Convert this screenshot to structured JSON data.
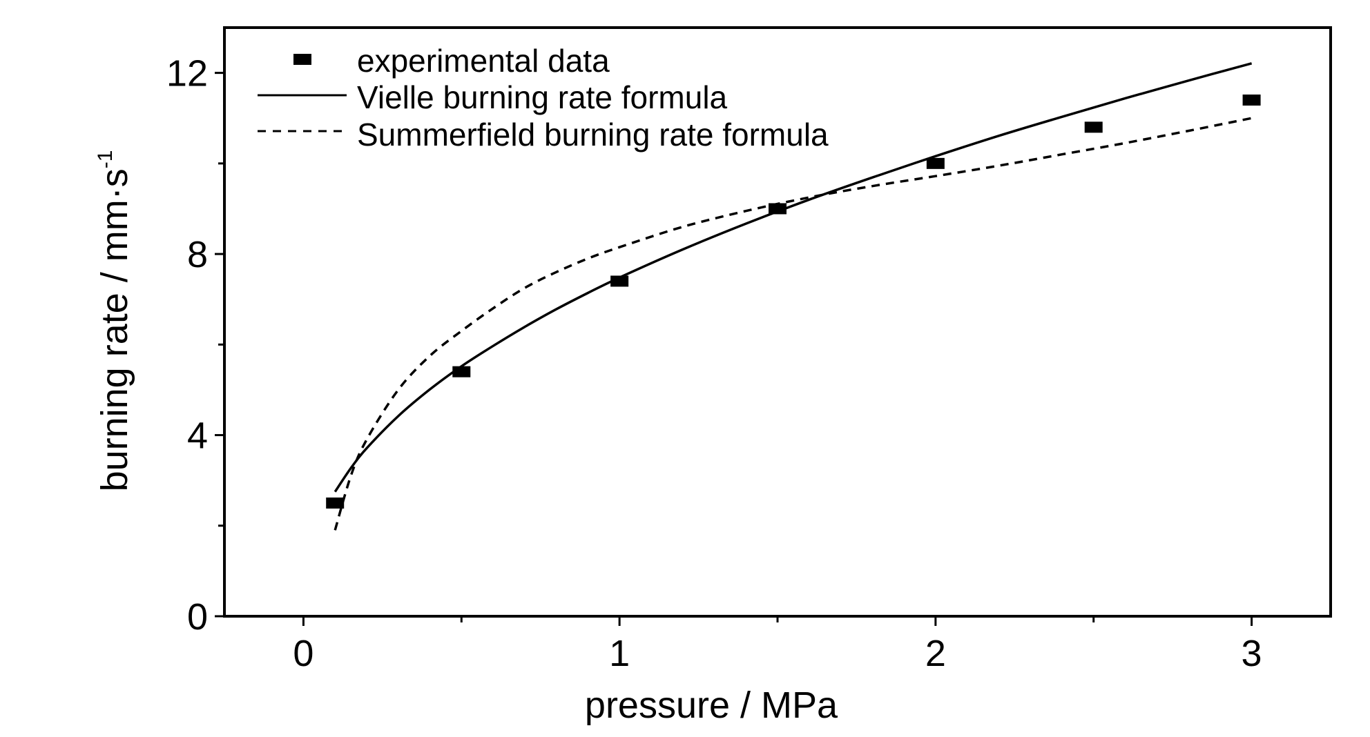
{
  "chart_data": {
    "type": "line",
    "title": "",
    "xlabel": "pressure / MPa",
    "ylabel": {
      "base": "burning rate / mm·s",
      "superscript": "-1"
    },
    "xlim": [
      -0.25,
      3.25
    ],
    "ylim": [
      0,
      13
    ],
    "xticks": [
      {
        "value": 0,
        "label": "0"
      },
      {
        "value": 1,
        "label": "1"
      },
      {
        "value": 2,
        "label": "2"
      },
      {
        "value": 3,
        "label": "3"
      }
    ],
    "x_minor_ticks": [
      0.5,
      1.5,
      2.5
    ],
    "yticks": [
      {
        "value": 0,
        "label": "0"
      },
      {
        "value": 4,
        "label": "4"
      },
      {
        "value": 8,
        "label": "8"
      },
      {
        "value": 12,
        "label": "12"
      }
    ],
    "y_minor_ticks": [
      2,
      6,
      10
    ],
    "grid": false,
    "legend_position": "top-left",
    "series": [
      {
        "name": "experimental data",
        "style": "marker-square",
        "color": "#000000",
        "x": [
          0.1,
          0.5,
          1.0,
          1.5,
          2.0,
          2.5,
          3.0
        ],
        "y": [
          2.5,
          5.4,
          7.4,
          9.0,
          10.0,
          10.8,
          11.4
        ]
      },
      {
        "name": "Vielle burning rate formula",
        "style": "solid-line",
        "color": "#000000",
        "x": [
          0.1,
          0.15,
          0.2,
          0.3,
          0.4,
          0.5,
          0.6,
          0.7,
          0.8,
          0.9,
          1.0,
          1.2,
          1.4,
          1.6,
          1.8,
          2.0,
          2.2,
          2.4,
          2.6,
          2.8,
          3.0
        ],
        "y": [
          2.75,
          3.27,
          3.71,
          4.42,
          5.01,
          5.52,
          5.97,
          6.39,
          6.78,
          7.14,
          7.48,
          8.1,
          8.67,
          9.2,
          9.69,
          10.16,
          10.61,
          11.03,
          11.44,
          11.83,
          12.21
        ]
      },
      {
        "name": "Summerfield burning rate formula",
        "style": "dashed-line",
        "color": "#000000",
        "x": [
          0.1,
          0.15,
          0.2,
          0.3,
          0.4,
          0.5,
          0.6,
          0.7,
          0.8,
          0.9,
          1.0,
          1.2,
          1.4,
          1.6,
          1.8,
          2.0,
          2.2,
          2.4,
          2.6,
          2.8,
          3.0
        ],
        "y": [
          1.9,
          3.1,
          3.9,
          5.0,
          5.75,
          6.3,
          6.8,
          7.25,
          7.6,
          7.9,
          8.15,
          8.6,
          8.95,
          9.25,
          9.5,
          9.72,
          9.95,
          10.2,
          10.45,
          10.72,
          11.0
        ]
      }
    ]
  }
}
